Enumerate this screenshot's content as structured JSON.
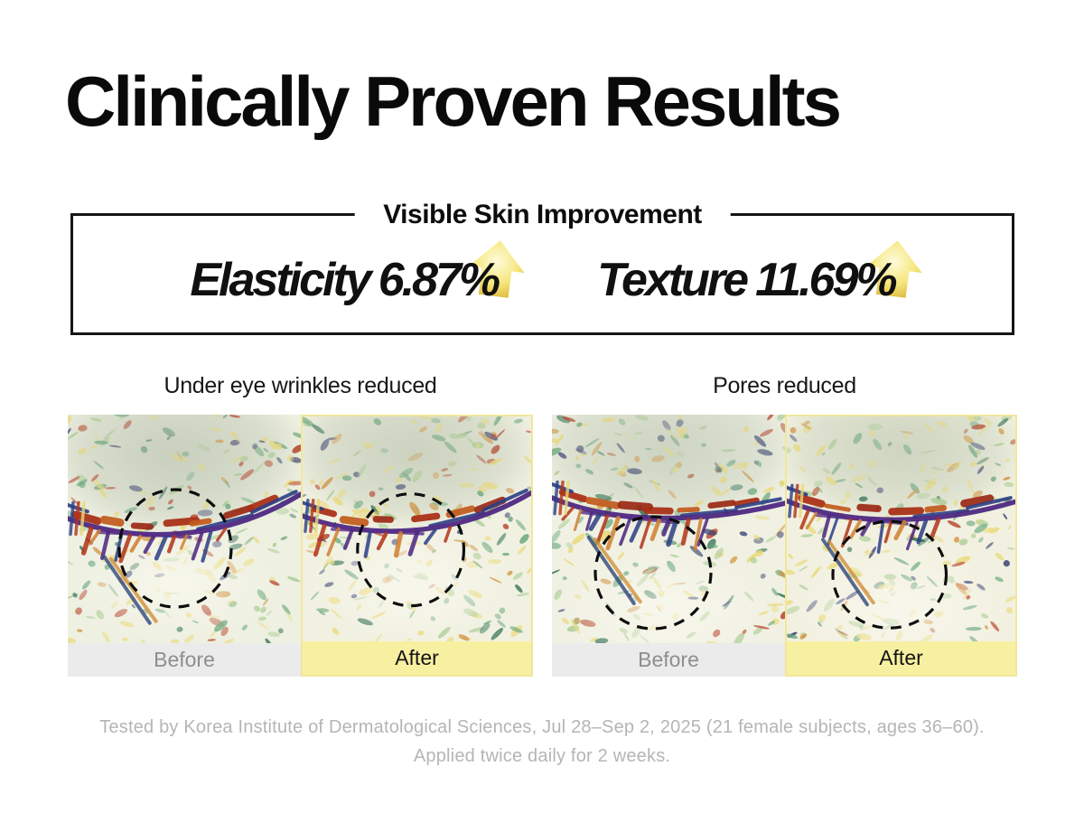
{
  "title": "Clinically Proven Results",
  "stats": {
    "box_title": "Visible Skin Improvement",
    "items": [
      {
        "label": "Elasticity",
        "value": "6.87%",
        "direction": "increase"
      },
      {
        "label": "Texture",
        "value": "11.69%",
        "direction": "increase"
      }
    ]
  },
  "comparisons": [
    {
      "title": "Under eye wrinkles reduced",
      "before_label": "Before",
      "after_label": "After"
    },
    {
      "title": "Pores reduced",
      "before_label": "Before",
      "after_label": "After"
    }
  ],
  "footnote": {
    "line1": "Tested by Korea Institute of Dermatological Sciences, Jul 28–Sep 2, 2025 (21 female subjects, ages 36–60).",
    "line2": "Applied twice daily for 2 weeks."
  },
  "icons": {
    "increase_arrow": "gold-up-arrow"
  },
  "colors": {
    "heading_text": "#0a0a0a",
    "box_border": "#161616",
    "arrow_gold_edge": "#d9b434",
    "arrow_gold_center": "#fdf9d9",
    "before_band_bg": "#ebebeb",
    "before_band_text": "#8e8e8e",
    "after_band_bg": "#f8f0a1",
    "after_band_text": "#141414",
    "after_border": "#f0e79b",
    "footnote_text": "#b5b5b5"
  }
}
